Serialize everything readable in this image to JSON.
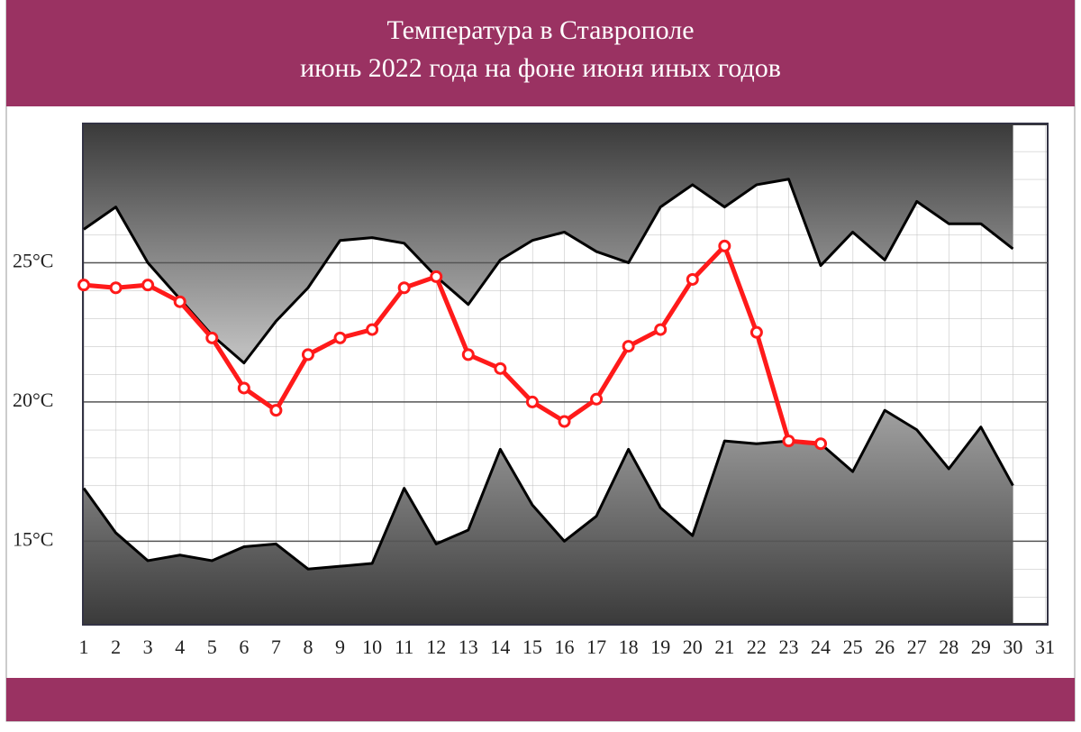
{
  "chart_data": {
    "type": "line",
    "title": [
      "Температура в Ставрополе",
      "июнь 2022 года на фоне июня иных годов"
    ],
    "x": [
      1,
      2,
      3,
      4,
      5,
      6,
      7,
      8,
      9,
      10,
      11,
      12,
      13,
      14,
      15,
      16,
      17,
      18,
      19,
      20,
      21,
      22,
      23,
      24,
      25,
      26,
      27,
      28,
      29,
      30
    ],
    "series": [
      {
        "color": "#000000",
        "values": [
          26.2,
          27.0,
          25.0,
          23.7,
          22.4,
          21.4,
          22.9,
          24.1,
          25.8,
          25.9,
          25.7,
          24.5,
          23.5,
          25.1,
          25.8,
          26.1,
          25.4,
          25.0,
          27.0,
          27.8,
          27.0,
          27.8,
          28.0,
          24.9,
          26.1,
          25.1,
          27.2,
          26.4,
          26.4,
          25.5
        ]
      },
      {
        "color": "#000000",
        "values": [
          16.9,
          15.3,
          14.3,
          14.5,
          14.3,
          14.8,
          14.9,
          14.0,
          14.1,
          14.2,
          16.9,
          14.9,
          15.4,
          18.3,
          16.3,
          15.0,
          15.9,
          18.3,
          16.2,
          15.2,
          18.6,
          18.5,
          18.6,
          18.5,
          17.5,
          19.7,
          19.0,
          17.6,
          19.1,
          17.0
        ]
      },
      {
        "color": "#ff1a1a",
        "values": [
          24.2,
          24.1,
          24.2,
          23.6,
          22.3,
          20.5,
          19.7,
          21.7,
          22.3,
          22.6,
          24.1,
          24.5,
          21.7,
          21.2,
          20.0,
          19.3,
          20.1,
          22.0,
          22.6,
          24.4,
          25.6,
          22.5,
          18.6,
          18.5,
          null,
          null,
          null,
          null,
          null,
          null
        ]
      }
    ],
    "xlim": [
      1,
      31
    ],
    "xticks": [
      1,
      2,
      3,
      4,
      5,
      6,
      7,
      8,
      9,
      10,
      11,
      12,
      13,
      14,
      15,
      16,
      17,
      18,
      19,
      20,
      21,
      22,
      23,
      24,
      25,
      26,
      27,
      28,
      29,
      30,
      31
    ],
    "ylim": [
      12,
      30
    ],
    "yticks": [
      {
        "value": 15,
        "label": "15°C"
      },
      {
        "value": 20,
        "label": "20°C"
      },
      {
        "value": 25,
        "label": "25°C"
      }
    ],
    "grid": true
  }
}
